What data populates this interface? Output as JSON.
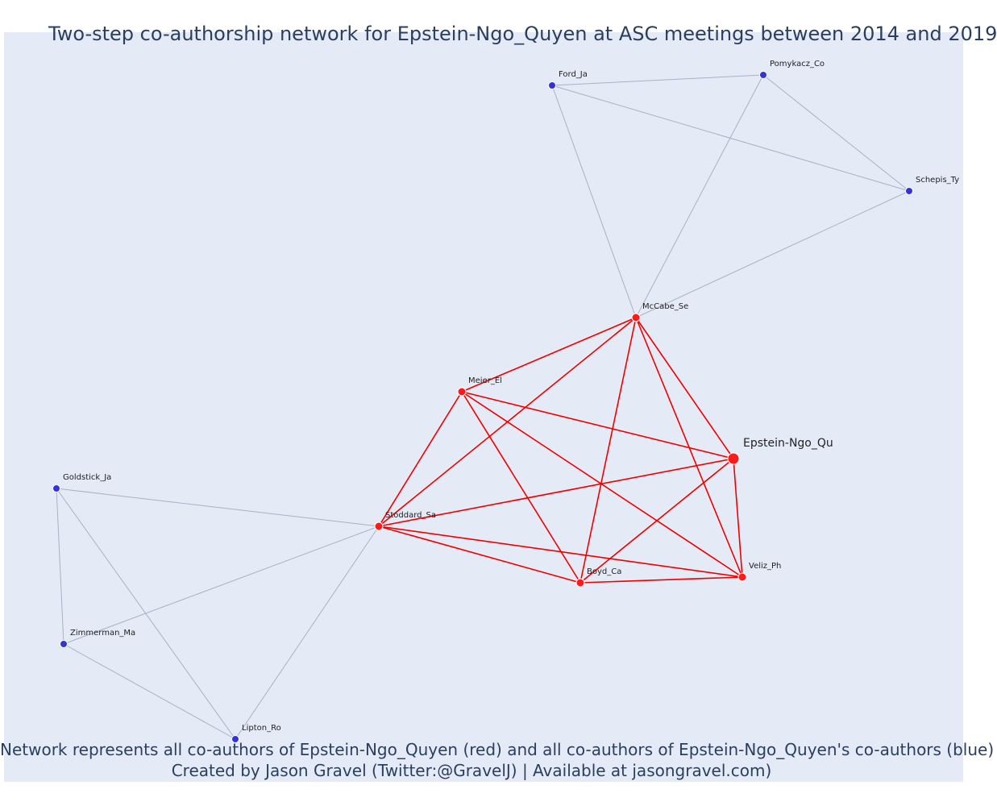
{
  "title": "Two-step co-authorship network for Epstein-Ngo_Quyen at ASC meetings between 2014 and 2019",
  "caption_line1": "Network represents all co-authors of Epstein-Ngo_Quyen (red) and all co-authors of Epstein-Ngo_Quyen's co-authors (blue)",
  "caption_line2": "Created by Jason Gravel (Twitter:@GravelJ) | Available at jasongravel.com)",
  "colors": {
    "background": "#e5ebf6",
    "first_step": "#ff1a1a",
    "second_step": "#3333dd",
    "first_step_edge": "#ee0000",
    "second_step_edge": "#aab0c6",
    "text": "#2a3f5f"
  },
  "chart_data": {
    "type": "network",
    "nodes": [
      {
        "id": "Epstein-Ngo_Qu",
        "label": "Epstein-Ngo_Qu",
        "group": "focal"
      },
      {
        "id": "McCabe_Se",
        "label": "McCabe_Se",
        "group": "coauthor"
      },
      {
        "id": "Meier_El",
        "label": "Meier_El",
        "group": "coauthor"
      },
      {
        "id": "Stoddard_Sa",
        "label": "Stoddard_Sa",
        "group": "coauthor"
      },
      {
        "id": "Boyd_Ca",
        "label": "Boyd_Ca",
        "group": "coauthor"
      },
      {
        "id": "Veliz_Ph",
        "label": "Veliz_Ph",
        "group": "coauthor"
      },
      {
        "id": "Ford_Ja",
        "label": "Ford_Ja",
        "group": "second"
      },
      {
        "id": "Pomykacz_Co",
        "label": "Pomykacz_Co",
        "group": "second"
      },
      {
        "id": "Schepis_Ty",
        "label": "Schepis_Ty",
        "group": "second"
      },
      {
        "id": "Goldstick_Ja",
        "label": "Goldstick_Ja",
        "group": "second"
      },
      {
        "id": "Zimmerman_Ma",
        "label": "Zimmerman_Ma",
        "group": "second"
      },
      {
        "id": "Lipton_Ro",
        "label": "Lipton_Ro",
        "group": "second"
      }
    ],
    "edges": [
      [
        "Epstein-Ngo_Qu",
        "McCabe_Se",
        "first"
      ],
      [
        "Epstein-Ngo_Qu",
        "Meier_El",
        "first"
      ],
      [
        "Epstein-Ngo_Qu",
        "Stoddard_Sa",
        "first"
      ],
      [
        "Epstein-Ngo_Qu",
        "Boyd_Ca",
        "first"
      ],
      [
        "Epstein-Ngo_Qu",
        "Veliz_Ph",
        "first"
      ],
      [
        "McCabe_Se",
        "Meier_El",
        "first"
      ],
      [
        "McCabe_Se",
        "Stoddard_Sa",
        "first"
      ],
      [
        "McCabe_Se",
        "Boyd_Ca",
        "first"
      ],
      [
        "McCabe_Se",
        "Veliz_Ph",
        "first"
      ],
      [
        "Meier_El",
        "Stoddard_Sa",
        "first"
      ],
      [
        "Meier_El",
        "Boyd_Ca",
        "first"
      ],
      [
        "Meier_El",
        "Veliz_Ph",
        "first"
      ],
      [
        "Stoddard_Sa",
        "Boyd_Ca",
        "first"
      ],
      [
        "Stoddard_Sa",
        "Veliz_Ph",
        "first"
      ],
      [
        "Boyd_Ca",
        "Veliz_Ph",
        "first"
      ],
      [
        "McCabe_Se",
        "Ford_Ja",
        "second"
      ],
      [
        "McCabe_Se",
        "Pomykacz_Co",
        "second"
      ],
      [
        "McCabe_Se",
        "Schepis_Ty",
        "second"
      ],
      [
        "Ford_Ja",
        "Pomykacz_Co",
        "second"
      ],
      [
        "Ford_Ja",
        "Schepis_Ty",
        "second"
      ],
      [
        "Pomykacz_Co",
        "Schepis_Ty",
        "second"
      ],
      [
        "Stoddard_Sa",
        "Goldstick_Ja",
        "second"
      ],
      [
        "Stoddard_Sa",
        "Zimmerman_Ma",
        "second"
      ],
      [
        "Stoddard_Sa",
        "Lipton_Ro",
        "second"
      ],
      [
        "Goldstick_Ja",
        "Zimmerman_Ma",
        "second"
      ],
      [
        "Goldstick_Ja",
        "Lipton_Ro",
        "second"
      ],
      [
        "Zimmerman_Ma",
        "Lipton_Ro",
        "second"
      ]
    ]
  }
}
